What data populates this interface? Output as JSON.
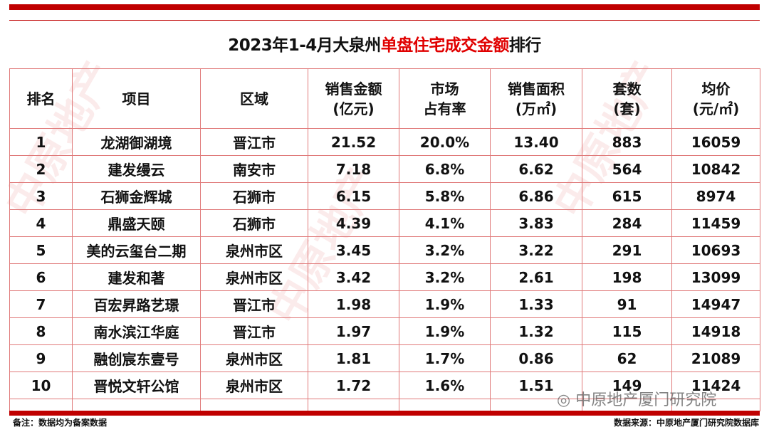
{
  "title": {
    "prefix": "2023年1-4月大泉州",
    "highlight": "单盘住宅成交金额",
    "suffix": "排行"
  },
  "headers": {
    "rank": "排名",
    "project": "项目",
    "area": "区域",
    "amount_l1": "销售金额",
    "amount_l2": "(亿元)",
    "share_l1": "市场",
    "share_l2": "占有率",
    "floor_l1": "销售面积",
    "floor_l2": "(万㎡)",
    "units_l1": "套数",
    "units_l2": "(套)",
    "price_l1": "均价",
    "price_l2": "(元/㎡)"
  },
  "rows": [
    {
      "rank": "1",
      "project": "龙湖御湖境",
      "area": "晋江市",
      "amount": "21.52",
      "share": "20.0%",
      "floor": "13.40",
      "units": "883",
      "price": "16059"
    },
    {
      "rank": "2",
      "project": "建发缦云",
      "area": "南安市",
      "amount": "7.18",
      "share": "6.8%",
      "floor": "6.62",
      "units": "564",
      "price": "10842"
    },
    {
      "rank": "3",
      "project": "石狮金辉城",
      "area": "石狮市",
      "amount": "6.15",
      "share": "5.8%",
      "floor": "6.86",
      "units": "615",
      "price": "8974"
    },
    {
      "rank": "4",
      "project": "鼎盛天颐",
      "area": "石狮市",
      "amount": "4.39",
      "share": "4.1%",
      "floor": "3.83",
      "units": "284",
      "price": "11459"
    },
    {
      "rank": "5",
      "project": "美的云玺台二期",
      "area": "泉州市区",
      "amount": "3.45",
      "share": "3.2%",
      "floor": "3.22",
      "units": "291",
      "price": "10693"
    },
    {
      "rank": "6",
      "project": "建发和著",
      "area": "泉州市区",
      "amount": "3.42",
      "share": "3.2%",
      "floor": "2.61",
      "units": "198",
      "price": "13099"
    },
    {
      "rank": "7",
      "project": "百宏昇路艺璟",
      "area": "晋江市",
      "amount": "1.98",
      "share": "1.9%",
      "floor": "1.33",
      "units": "91",
      "price": "14947"
    },
    {
      "rank": "8",
      "project": "南水滨江华庭",
      "area": "晋江市",
      "amount": "1.97",
      "share": "1.9%",
      "floor": "1.32",
      "units": "115",
      "price": "14918"
    },
    {
      "rank": "9",
      "project": "融创宸东壹号",
      "area": "泉州市区",
      "amount": "1.81",
      "share": "1.7%",
      "floor": "0.86",
      "units": "62",
      "price": "21089"
    },
    {
      "rank": "10",
      "project": "晋悦文轩公馆",
      "area": "泉州市区",
      "amount": "1.72",
      "share": "1.6%",
      "floor": "1.51",
      "units": "149",
      "price": "11424"
    }
  ],
  "footer": {
    "note": "备注：数据均为备案数据",
    "source": "数据来源：中原地产厦门研究院数据库"
  },
  "watermark": "中原地产 CENTALINE PROPERTY",
  "wechat_label": "中原地产厦门研究院",
  "colors": {
    "accent": "#c00000",
    "highlight": "#e00000"
  }
}
